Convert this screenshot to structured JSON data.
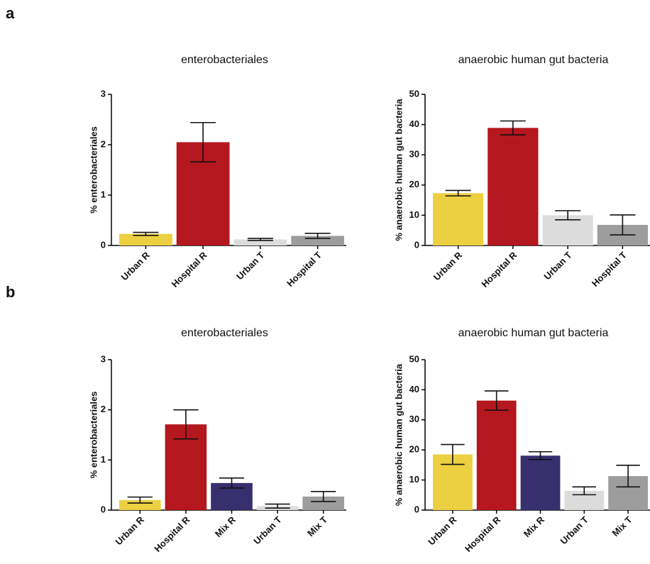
{
  "panel_labels": [
    "a",
    "b"
  ],
  "chart_data": [
    {
      "type": "bar",
      "title": "enterobacteriales",
      "y_label": "% enterobacteriales",
      "categories": [
        "Urban R",
        "Hospital R",
        "Urban T",
        "Hospital T"
      ],
      "values": [
        0.23,
        2.05,
        0.12,
        0.19
      ],
      "errors": [
        0.03,
        0.39,
        0.02,
        0.05
      ],
      "colors": [
        "#ecd042",
        "#b5171f",
        "#dcdcdc",
        "#9d9d9d"
      ],
      "ylim": [
        0,
        3
      ],
      "yticks": [
        0,
        1,
        2,
        3
      ]
    },
    {
      "type": "bar",
      "title": "anaerobic human gut bacteria",
      "y_label": "% anaerobic human gut bacteria",
      "categories": [
        "Urban R",
        "Hospital R",
        "Urban T",
        "Hospital T"
      ],
      "values": [
        17.3,
        38.9,
        10.0,
        6.8
      ],
      "errors": [
        0.9,
        2.3,
        1.5,
        3.3
      ],
      "colors": [
        "#ecd042",
        "#b5171f",
        "#dcdcdc",
        "#9d9d9d"
      ],
      "ylim": [
        0,
        50
      ],
      "yticks": [
        0,
        10,
        20,
        30,
        40,
        50
      ]
    },
    {
      "type": "bar",
      "title": "enterobacteriales",
      "y_label": "% enterobacteriales",
      "categories": [
        "Urban R",
        "Hospital R",
        "Mix R",
        "Urban T",
        "Mix T"
      ],
      "values": [
        0.2,
        1.71,
        0.54,
        0.08,
        0.27
      ],
      "errors": [
        0.06,
        0.29,
        0.1,
        0.04,
        0.1
      ],
      "colors": [
        "#ecd042",
        "#b5171f",
        "#372f6e",
        "#dcdcdc",
        "#9d9d9d"
      ],
      "ylim": [
        0,
        3
      ],
      "yticks": [
        0,
        1,
        2,
        3
      ]
    },
    {
      "type": "bar",
      "title": "anaerobic human gut bacteria",
      "y_label": "% anaerobic human gut bacteria",
      "categories": [
        "Urban R",
        "Hospital R",
        "Mix R",
        "Urban T",
        "Mix T"
      ],
      "values": [
        18.5,
        36.4,
        18.1,
        6.4,
        11.3
      ],
      "errors": [
        3.3,
        3.2,
        1.3,
        1.3,
        3.6
      ],
      "colors": [
        "#ecd042",
        "#b5171f",
        "#372f6e",
        "#dcdcdc",
        "#9d9d9d"
      ],
      "ylim": [
        0,
        50
      ],
      "yticks": [
        0,
        10,
        20,
        30,
        40,
        50
      ]
    }
  ]
}
